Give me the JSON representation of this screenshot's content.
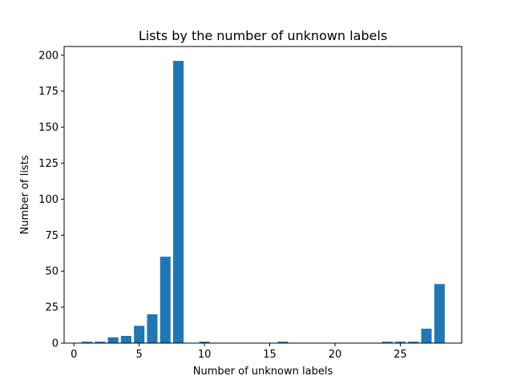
{
  "chart_data": {
    "type": "bar",
    "title": "Lists by the number of unknown labels",
    "xlabel": "Number of unknown labels",
    "ylabel": "Number of lists",
    "xlim": [
      -0.75,
      29.7
    ],
    "ylim": [
      0,
      206
    ],
    "x_ticks": [
      0,
      5,
      10,
      15,
      20,
      25
    ],
    "y_ticks": [
      0,
      25,
      50,
      75,
      100,
      125,
      150,
      175,
      200
    ],
    "bar_color": "#1f77b4",
    "grid": false,
    "x": [
      1,
      2,
      3,
      4,
      5,
      6,
      7,
      8,
      10,
      16,
      24,
      25,
      26,
      27,
      28
    ],
    "values": [
      1,
      1,
      4,
      5,
      12,
      20,
      60,
      196,
      1,
      1,
      1,
      1,
      1,
      10,
      41
    ]
  }
}
